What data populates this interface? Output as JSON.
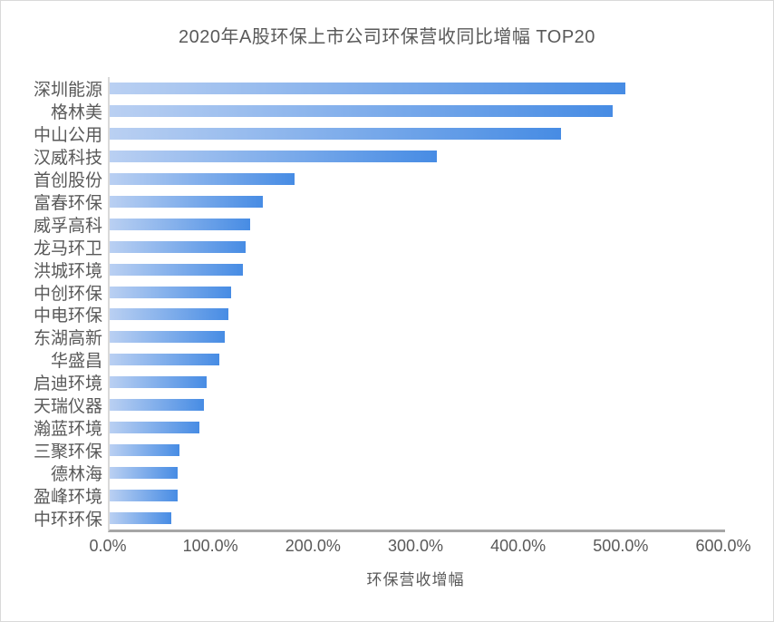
{
  "window": {
    "background": "#ffffff",
    "border_color": "#d9d9d9"
  },
  "chart_data": {
    "type": "bar",
    "orientation": "horizontal",
    "title": "2020年A股环保上市公司环保营收同比增幅 TOP20",
    "xlabel": "环保营收增幅",
    "ylabel": "",
    "unit": "%",
    "xlim": [
      0,
      600
    ],
    "grid": false,
    "legend": null,
    "categories": [
      "深圳能源",
      "格林美",
      "中山公用",
      "汉威科技",
      "首创股份",
      "富春环保",
      "威孚高科",
      "龙马环卫",
      "洪城环境",
      "中创环保",
      "中电环保",
      "东湖高新",
      "华盛昌",
      "启迪环境",
      "天瑞仪器",
      "瀚蓝环境",
      "三聚环保",
      "德林海",
      "盈峰环境",
      "中环环保"
    ],
    "values": [
      502.7,
      490.3,
      440.0,
      319.0,
      180.3,
      149.3,
      137.0,
      132.5,
      129.9,
      118.4,
      115.7,
      112.2,
      106.9,
      94.5,
      91.9,
      87.5,
      68.0,
      66.3,
      66.3,
      60.1
    ],
    "x_tick_labels": [
      "0.0%",
      "100.0%",
      "200.0%",
      "300.0%",
      "400.0%",
      "500.0%",
      "600.0%"
    ],
    "bar_gradient": {
      "start": "#bad0f2",
      "end": "#478ce4"
    },
    "title_color": "#595959",
    "axis_text_color": "#595959",
    "axis_line_color": "#a6a6a6",
    "category_axis_line_color": "#d9d9d9"
  }
}
